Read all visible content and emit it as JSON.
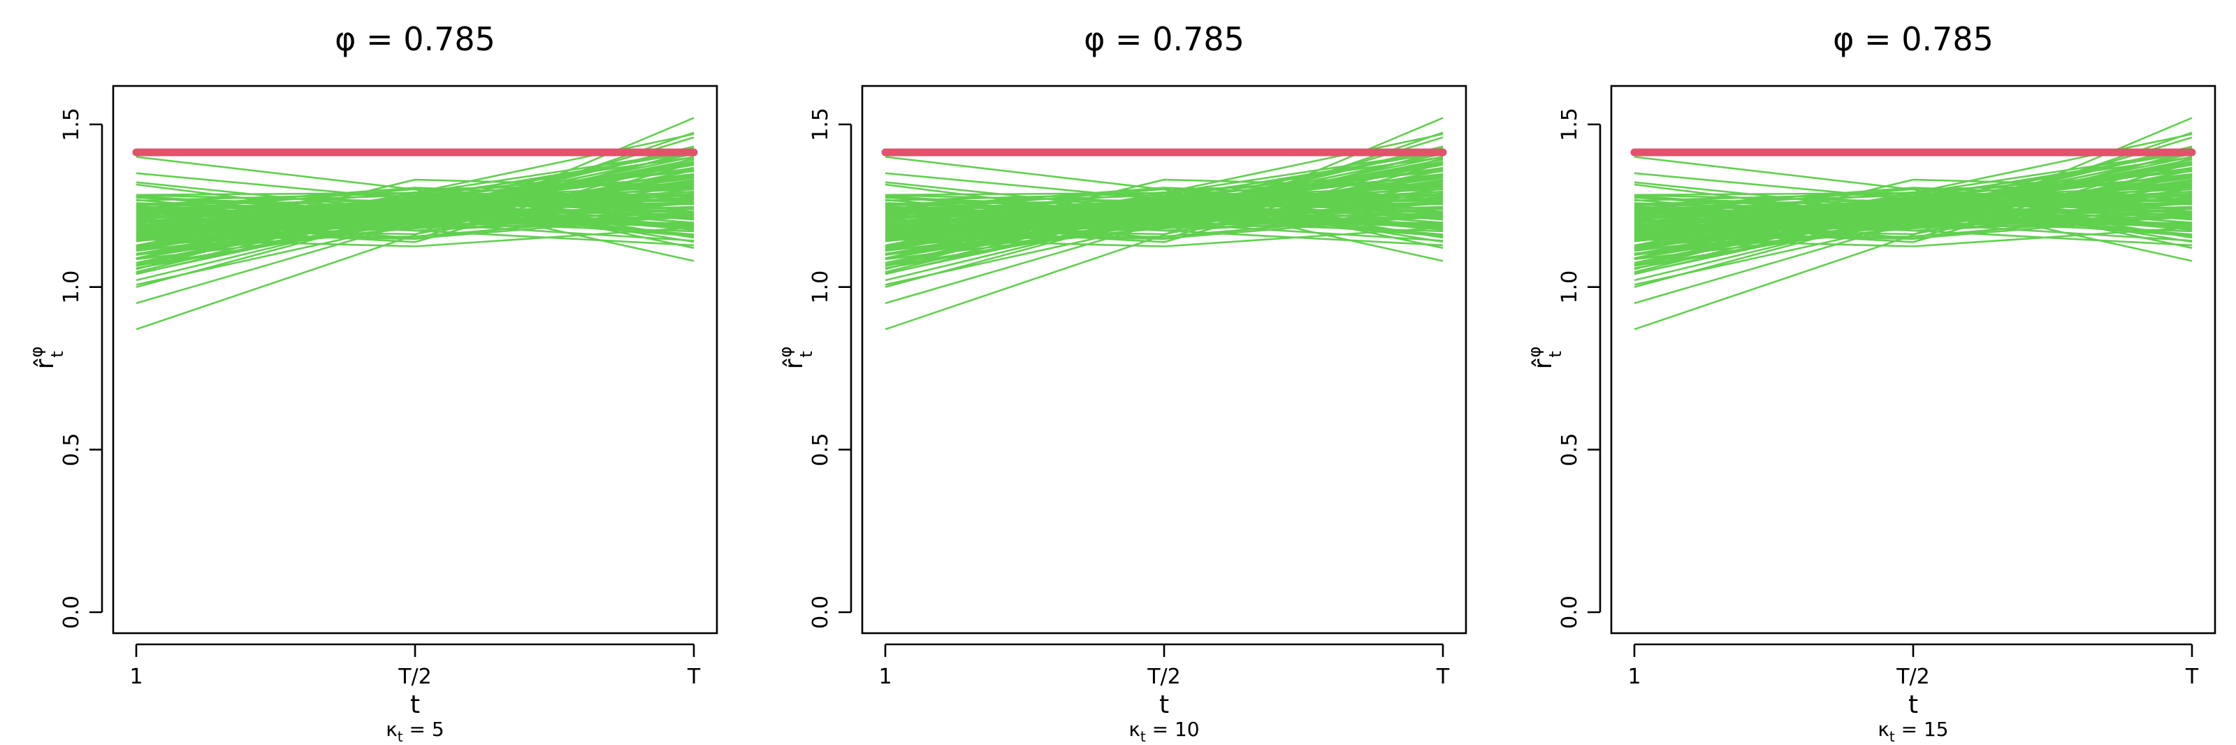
{
  "colors": {
    "sim_lines": "#61D04F",
    "true_line": "#DF536B",
    "axes": "#000000"
  },
  "chart_data": [
    {
      "type": "line",
      "title": "φ = 0.785",
      "xlabel": "t",
      "ylabel": "r̂",
      "ylabel_sub": "t",
      "ylabel_sup": "φ",
      "caption_main": "κ",
      "caption_sub": "t",
      "caption_val": " = 5",
      "x_ticks": [
        "1",
        "T/2",
        "T"
      ],
      "ylim": [
        0,
        1.6
      ],
      "y_ticks": [
        "0.0",
        "0.5",
        "1.0",
        "1.5"
      ],
      "x_positions": [
        "1",
        "T/2",
        "T"
      ],
      "true_value": 1.414,
      "series_count": 120,
      "series_sample": [
        [
          0.87,
          1.16,
          1.52
        ],
        [
          0.95,
          1.2,
          1.46
        ],
        [
          1.0,
          1.23,
          1.41
        ],
        [
          1.4,
          1.3,
          1.12
        ],
        [
          1.35,
          1.27,
          1.08
        ],
        [
          1.1,
          1.22,
          1.34
        ]
      ]
    },
    {
      "type": "line",
      "title": "φ = 0.785",
      "xlabel": "t",
      "ylabel": "r̂",
      "ylabel_sub": "t",
      "ylabel_sup": "φ",
      "caption_main": "κ",
      "caption_sub": "t",
      "caption_val": " = 10",
      "x_ticks": [
        "1",
        "T/2",
        "T"
      ],
      "ylim": [
        0,
        1.6
      ],
      "y_ticks": [
        "0.0",
        "0.5",
        "1.0",
        "1.5"
      ],
      "x_positions": [
        "1",
        "T/2",
        "T"
      ],
      "true_value": 1.414,
      "series_count": 120,
      "series_sample": [
        [
          0.87,
          1.16,
          1.52
        ],
        [
          0.95,
          1.2,
          1.46
        ],
        [
          1.0,
          1.23,
          1.41
        ],
        [
          1.4,
          1.3,
          1.12
        ],
        [
          1.35,
          1.27,
          1.08
        ],
        [
          1.1,
          1.22,
          1.34
        ]
      ]
    },
    {
      "type": "line",
      "title": "φ = 0.785",
      "xlabel": "t",
      "ylabel": "r̂",
      "ylabel_sub": "t",
      "ylabel_sup": "φ",
      "caption_main": "κ",
      "caption_sub": "t",
      "caption_val": " = 15",
      "x_ticks": [
        "1",
        "T/2",
        "T"
      ],
      "ylim": [
        0,
        1.6
      ],
      "y_ticks": [
        "0.0",
        "0.5",
        "1.0",
        "1.5"
      ],
      "x_positions": [
        "1",
        "T/2",
        "T"
      ],
      "true_value": 1.414,
      "series_count": 120,
      "series_sample": [
        [
          0.87,
          1.16,
          1.52
        ],
        [
          0.95,
          1.2,
          1.46
        ],
        [
          1.0,
          1.23,
          1.41
        ],
        [
          1.4,
          1.3,
          1.12
        ],
        [
          1.35,
          1.27,
          1.08
        ],
        [
          1.1,
          1.22,
          1.34
        ]
      ]
    }
  ]
}
